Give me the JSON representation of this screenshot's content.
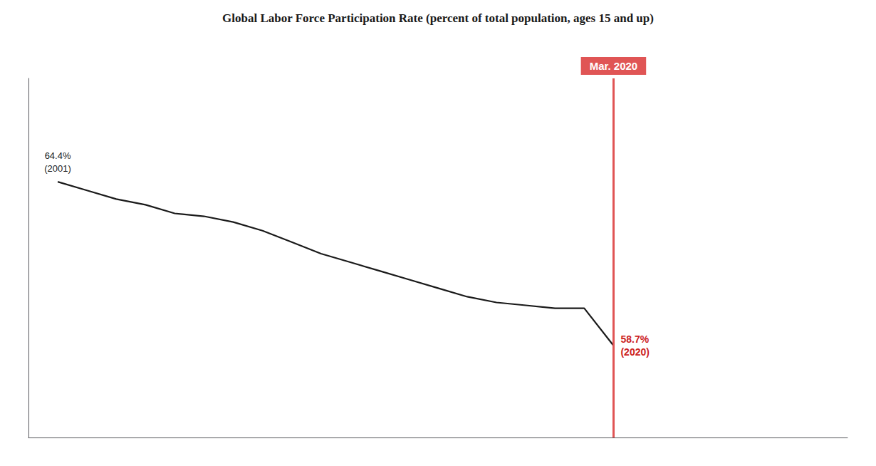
{
  "chart_data": {
    "type": "line",
    "title": "Global Labor Force Participation Rate (percent of total population, ages 15 and up)",
    "x": [
      2001,
      2002,
      2003,
      2004,
      2005,
      2006,
      2007,
      2008,
      2009,
      2010,
      2011,
      2012,
      2013,
      2014,
      2015,
      2016,
      2017,
      2018,
      2019,
      2020
    ],
    "values": [
      64.4,
      64.1,
      63.8,
      63.6,
      63.3,
      63.2,
      63.0,
      62.7,
      62.3,
      61.9,
      61.6,
      61.3,
      61.0,
      60.7,
      60.4,
      60.2,
      60.1,
      60.0,
      60.0,
      58.7
    ],
    "color": "#1a1a1a",
    "xlim": [
      2000.0,
      2028.0
    ],
    "ylim": [
      55.5,
      68.0
    ],
    "tick_labels": false,
    "grid": false,
    "annotations": [
      {
        "text": "64.4%\n(2001)",
        "x": 2001,
        "y": 64.4,
        "color": "#1a1a1a"
      },
      {
        "text": "58.7%\n(2020)",
        "x": 2020,
        "y": 58.7,
        "color": "#cc2222"
      },
      {
        "text": "Mar. 2020",
        "x": 2020,
        "color": "#e05555"
      }
    ]
  }
}
